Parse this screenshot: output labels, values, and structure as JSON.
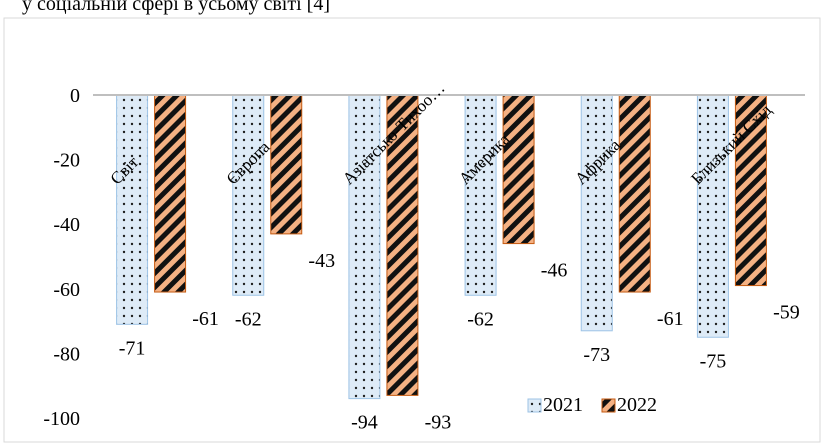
{
  "header_text": "у соціальній сфері в усьому світі [4]",
  "chart_data": {
    "type": "bar",
    "categories": [
      "Світ",
      "Європа",
      "Азіатсько-Тихоо…",
      "Америка",
      "Африка",
      "Близький Схід"
    ],
    "series": [
      {
        "name": "2021",
        "values": [
          -71,
          -62,
          -94,
          -62,
          -73,
          -75
        ],
        "color": "#bdd7ee",
        "pattern": "dots"
      },
      {
        "name": "2022",
        "values": [
          -61,
          -43,
          -93,
          -46,
          -61,
          -59
        ],
        "color": "#c55a11",
        "pattern": "diagonal-stripes"
      }
    ],
    "ylim": [
      -100,
      0
    ],
    "yticks": [
      "0",
      "-20",
      "-40",
      "-60",
      "-80",
      "-100"
    ],
    "legend_position": "bottom-right",
    "grid": false,
    "title": "",
    "xlabel": "",
    "ylabel": ""
  }
}
